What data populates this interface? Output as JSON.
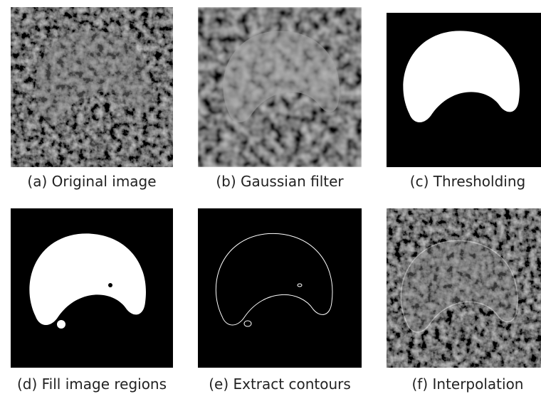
{
  "panels": [
    {
      "caption": "(a) Original image"
    },
    {
      "caption": "(b) Gaussian filter"
    },
    {
      "caption": "(c) Thresholding"
    },
    {
      "caption": "(d) Fill image regions"
    },
    {
      "caption": "(e) Extract contours"
    },
    {
      "caption": "(f) Interpolation"
    }
  ]
}
